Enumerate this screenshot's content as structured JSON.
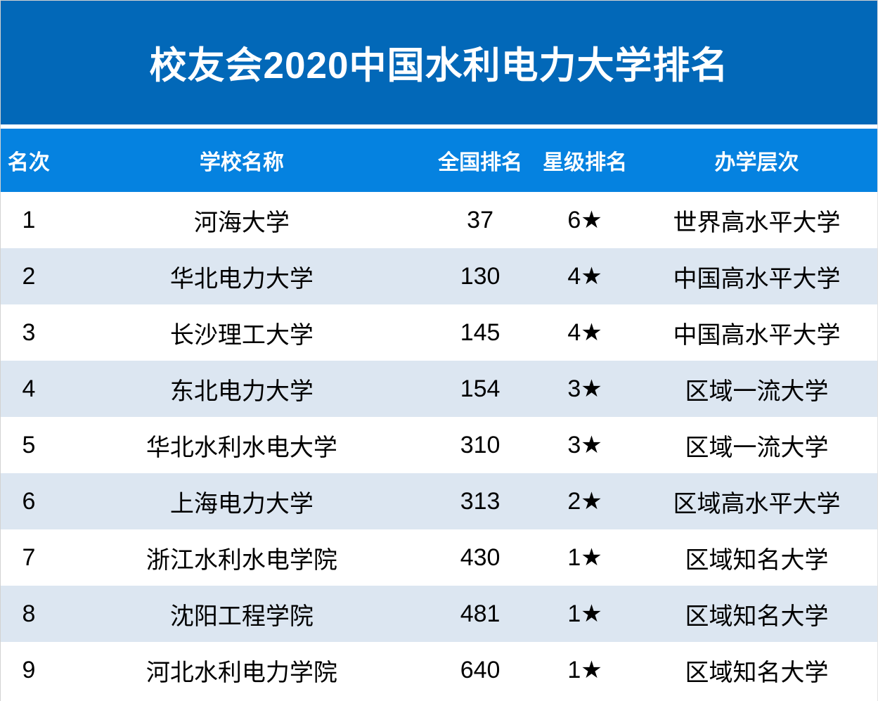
{
  "chart_data": {
    "type": "table",
    "title": "校友会2020中国水利电力大学排名",
    "columns": [
      "名次",
      "学校名称",
      "全国排名",
      "星级排名",
      "办学层次"
    ],
    "rows": [
      [
        "1",
        "河海大学",
        "37",
        "6★",
        "世界高水平大学"
      ],
      [
        "2",
        "华北电力大学",
        "130",
        "4★",
        "中国高水平大学"
      ],
      [
        "3",
        "长沙理工大学",
        "145",
        "4★",
        "中国高水平大学"
      ],
      [
        "4",
        "东北电力大学",
        "154",
        "3★",
        "区域一流大学"
      ],
      [
        "5",
        "华北水利水电大学",
        "310",
        "3★",
        "区域一流大学"
      ],
      [
        "6",
        "上海电力大学",
        "313",
        "2★",
        "区域高水平大学"
      ],
      [
        "7",
        "浙江水利水电学院",
        "430",
        "1★",
        "区域知名大学"
      ],
      [
        "8",
        "沈阳工程学院",
        "481",
        "1★",
        "区域知名大学"
      ],
      [
        "9",
        "河北水利电力学院",
        "640",
        "1★",
        "区域知名大学"
      ]
    ],
    "layout": {
      "alternating_rows": true,
      "text_align": "center"
    }
  },
  "colors": {
    "title_bg": "#0268b8",
    "header_bg": "#0582e0",
    "header_text": "#ffffff",
    "row_alt_bg": "#dce6f1",
    "row_text": "#000000"
  }
}
